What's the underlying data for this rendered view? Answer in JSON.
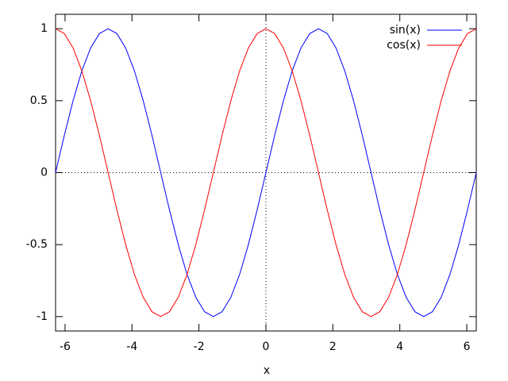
{
  "chart_data": {
    "type": "line",
    "xlabel": "x",
    "x": [
      -6.283,
      -6.021,
      -5.76,
      -5.498,
      -5.236,
      -4.974,
      -4.712,
      -4.451,
      -4.189,
      -3.927,
      -3.665,
      -3.403,
      -3.142,
      -2.88,
      -2.618,
      -2.356,
      -2.094,
      -1.833,
      -1.571,
      -1.309,
      -1.047,
      -0.785,
      -0.524,
      -0.262,
      0,
      0.262,
      0.524,
      0.785,
      1.047,
      1.309,
      1.571,
      1.833,
      2.094,
      2.356,
      2.618,
      2.88,
      3.142,
      3.403,
      3.665,
      3.927,
      4.189,
      4.451,
      4.712,
      4.974,
      5.236,
      5.498,
      5.76,
      6.021,
      6.283
    ],
    "series": [
      {
        "name": "sin(x)",
        "color": "#0000ff",
        "values": [
          0,
          0.259,
          0.5,
          0.707,
          0.866,
          0.966,
          1,
          0.966,
          0.866,
          0.707,
          0.5,
          0.259,
          0,
          -0.259,
          -0.5,
          -0.707,
          -0.866,
          -0.966,
          -1,
          -0.966,
          -0.866,
          -0.707,
          -0.5,
          -0.259,
          0,
          0.259,
          0.5,
          0.707,
          0.866,
          0.966,
          1,
          0.966,
          0.866,
          0.707,
          0.5,
          0.259,
          0,
          -0.259,
          -0.5,
          -0.707,
          -0.866,
          -0.966,
          -1,
          -0.966,
          -0.866,
          -0.707,
          -0.5,
          -0.259,
          0
        ]
      },
      {
        "name": "cos(x)",
        "color": "#ff0000",
        "values": [
          1,
          0.966,
          0.866,
          0.707,
          0.5,
          0.259,
          0,
          -0.259,
          -0.5,
          -0.707,
          -0.866,
          -0.966,
          -1,
          -0.966,
          -0.866,
          -0.707,
          -0.5,
          -0.259,
          0,
          0.259,
          0.5,
          0.707,
          0.866,
          0.966,
          1,
          0.966,
          0.866,
          0.707,
          0.5,
          0.259,
          0,
          -0.259,
          -0.5,
          -0.707,
          -0.866,
          -0.966,
          -1,
          -0.966,
          -0.866,
          -0.707,
          -0.5,
          -0.259,
          0,
          0.259,
          0.5,
          0.707,
          0.866,
          0.966,
          1
        ]
      }
    ],
    "xlim": [
      -6.283,
      6.283
    ],
    "xticks": [
      -6,
      -4,
      -2,
      0,
      2,
      4,
      6
    ],
    "ylim": [
      -1.1,
      1.1
    ],
    "yticks": [
      -1,
      -0.5,
      0,
      0.5,
      1
    ],
    "zeroaxis": true,
    "legend": "top-right"
  }
}
